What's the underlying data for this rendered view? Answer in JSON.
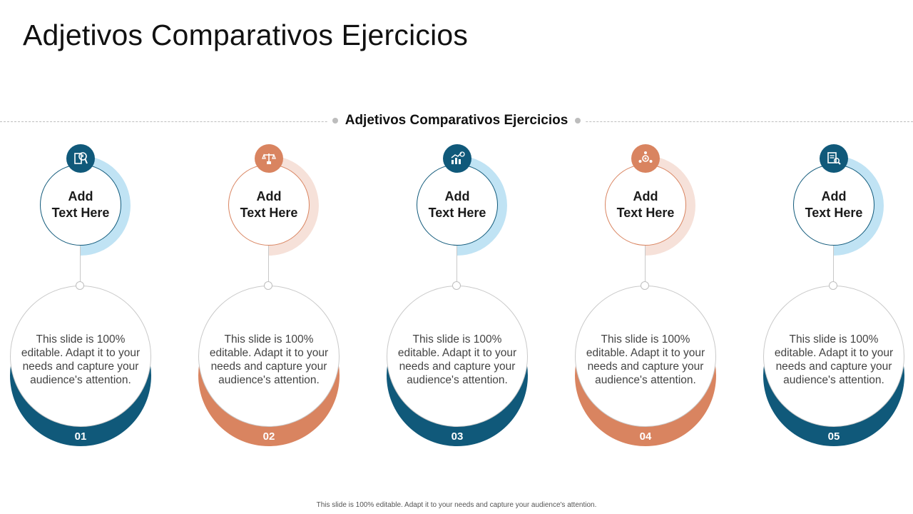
{
  "page": {
    "title": "Adjetivos Comparativos Ejercicios",
    "subtitle": "Adjetivos Comparativos Ejercicios",
    "footer": "This slide is 100% editable. Adapt it to your needs and capture your audience's attention."
  },
  "colors": {
    "blue": "#10597a",
    "blue_light": "#c0e3f4",
    "orange": "#d98460",
    "orange_light": "#f6e1d9",
    "divider": "#bdbdbd"
  },
  "steps": [
    {
      "number": "01",
      "heading": "Add\nText Here",
      "body": "This slide is 100% editable. Adapt it to your needs and capture your audience's attention.",
      "theme": "blue",
      "icon": "analysis-icon"
    },
    {
      "number": "02",
      "heading": "Add\nText Here",
      "body": "This slide is 100% editable. Adapt it to your needs and capture your audience's attention.",
      "theme": "orange",
      "icon": "balance-scale-icon"
    },
    {
      "number": "03",
      "heading": "Add\nText Here",
      "body": "This slide is 100% editable. Adapt it to your needs and capture your audience's attention.",
      "theme": "blue",
      "icon": "growth-chart-icon"
    },
    {
      "number": "04",
      "heading": "Add\nText Here",
      "body": "This slide is 100% editable. Adapt it to your needs and capture your audience's attention.",
      "theme": "orange",
      "icon": "team-gear-icon"
    },
    {
      "number": "05",
      "heading": "Add\nText Here",
      "body": "This slide is 100% editable. Adapt it to your needs and capture your audience's attention.",
      "theme": "blue",
      "icon": "document-search-icon"
    }
  ]
}
